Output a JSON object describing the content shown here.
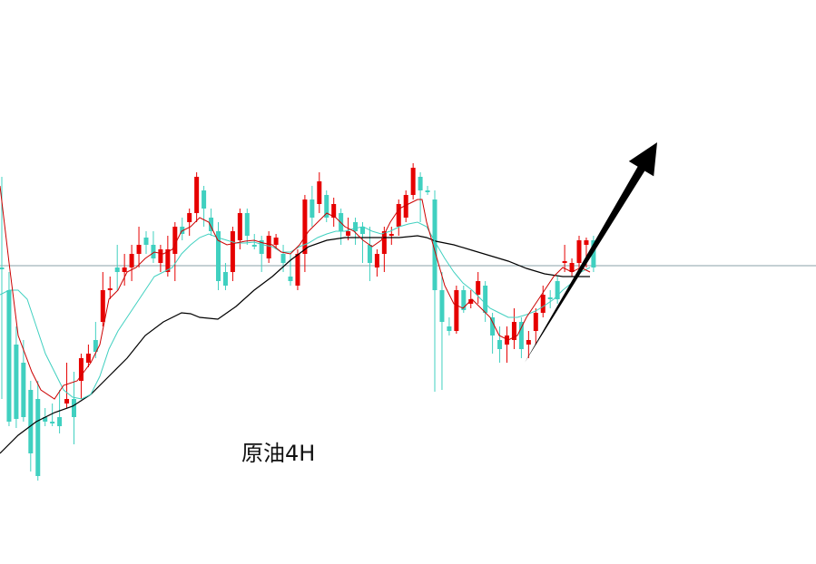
{
  "chart_data": {
    "type": "candlestick",
    "label": "原油4H",
    "ylim": [
      0,
      622
    ],
    "candles": [
      [
        295,
        295,
        195,
        440
      ],
      [
        320,
        465,
        300,
        470
      ],
      [
        380,
        462,
        360,
        472
      ],
      [
        400,
        460,
        375,
        465
      ],
      [
        430,
        500,
        420,
        520
      ],
      [
        440,
        525,
        420,
        530
      ],
      [
        460,
        465,
        450,
        470
      ],
      [
        465,
        465,
        445,
        470
      ],
      [
        460,
        470,
        430,
        478
      ],
      [
        445,
        440,
        400,
        450
      ],
      [
        440,
        460,
        410,
        490
      ],
      [
        420,
        395,
        390,
        440
      ],
      [
        400,
        390,
        380,
        405
      ],
      [
        375,
        388,
        355,
        395
      ],
      [
        355,
        320,
        300,
        360
      ],
      [
        320,
        318,
        305,
        330
      ],
      [
        295,
        300,
        270,
        320
      ],
      [
        300,
        295,
        280,
        315
      ],
      [
        295,
        280,
        270,
        310
      ],
      [
        280,
        270,
        250,
        295
      ],
      [
        262,
        270,
        255,
        280
      ],
      [
        270,
        285,
        255,
        290
      ],
      [
        290,
        275,
        270,
        300
      ],
      [
        300,
        275,
        260,
        305
      ],
      [
        280,
        250,
        245,
        310
      ],
      [
        250,
        258,
        240,
        265
      ],
      [
        245,
        235,
        230,
        260
      ],
      [
        235,
        195,
        190,
        245
      ],
      [
        210,
        230,
        205,
        250
      ],
      [
        240,
        255,
        230,
        260
      ],
      [
        255,
        310,
        245,
        320
      ],
      [
        300,
        315,
        290,
        320
      ],
      [
        300,
        255,
        250,
        310
      ],
      [
        265,
        235,
        230,
        275
      ],
      [
        235,
        260,
        230,
        270
      ],
      [
        270,
        270,
        258,
        275
      ],
      [
        265,
        280,
        260,
        300
      ],
      [
        285,
        260,
        255,
        290
      ],
      [
        270,
        262,
        258,
        275
      ],
      [
        280,
        290,
        270,
        300
      ],
      [
        305,
        310,
        280,
        315
      ],
      [
        315,
        280,
        275,
        320
      ],
      [
        280,
        220,
        215,
        300
      ],
      [
        220,
        240,
        205,
        250
      ],
      [
        225,
        200,
        190,
        235
      ],
      [
        215,
        240,
        210,
        245
      ],
      [
        240,
        225,
        218,
        250
      ],
      [
        235,
        255,
        230,
        270
      ],
      [
        260,
        255,
        240,
        265
      ],
      [
        245,
        255,
        240,
        270
      ],
      [
        250,
        258,
        245,
        290
      ],
      [
        270,
        290,
        250,
        310
      ],
      [
        295,
        280,
        275,
        305
      ],
      [
        280,
        255,
        250,
        300
      ],
      [
        260,
        258,
        250,
        270
      ],
      [
        250,
        225,
        220,
        260
      ],
      [
        240,
        215,
        210,
        245
      ],
      [
        215,
        185,
        180,
        220
      ],
      [
        195,
        210,
        190,
        245
      ],
      [
        210,
        210,
        205,
        215
      ],
      [
        220,
        320,
        210,
        432
      ],
      [
        320,
        355,
        300,
        430
      ],
      [
        360,
        365,
        350,
        370
      ],
      [
        365,
        320,
        315,
        368
      ],
      [
        320,
        342,
        315,
        345
      ],
      [
        335,
        330,
        320,
        340
      ],
      [
        325,
        310,
        300,
        335
      ],
      [
        315,
        345,
        310,
        355
      ],
      [
        350,
        370,
        345,
        390
      ],
      [
        375,
        385,
        360,
        400
      ],
      [
        380,
        370,
        360,
        400
      ],
      [
        375,
        355,
        340,
        385
      ],
      [
        355,
        385,
        350,
        395
      ],
      [
        380,
        375,
        365,
        395
      ],
      [
        365,
        345,
        340,
        380
      ],
      [
        345,
        325,
        315,
        350
      ],
      [
        328,
        330,
        320,
        340
      ],
      [
        310,
        330,
        305,
        335
      ],
      [
        290,
        288,
        270,
        300
      ],
      [
        300,
        290,
        285,
        305
      ],
      [
        290,
        265,
        260,
        300
      ],
      [
        270,
        265,
        262,
        295
      ],
      [
        265,
        295,
        260,
        300
      ]
    ],
    "ma_fast": [
      [
        0,
        205
      ],
      [
        10,
        290
      ],
      [
        20,
        370
      ],
      [
        35,
        410
      ],
      [
        45,
        430
      ],
      [
        60,
        440
      ],
      [
        70,
        425
      ],
      [
        85,
        420
      ],
      [
        100,
        400
      ],
      [
        110,
        380
      ],
      [
        120,
        330
      ],
      [
        130,
        320
      ],
      [
        140,
        300
      ],
      [
        150,
        295
      ],
      [
        160,
        285
      ],
      [
        170,
        278
      ],
      [
        180,
        280
      ],
      [
        190,
        275
      ],
      [
        200,
        255
      ],
      [
        210,
        250
      ],
      [
        220,
        240
      ],
      [
        230,
        245
      ],
      [
        240,
        265
      ],
      [
        250,
        270
      ],
      [
        260,
        268
      ],
      [
        270,
        266
      ],
      [
        280,
        265
      ],
      [
        290,
        268
      ],
      [
        300,
        270
      ],
      [
        310,
        278
      ],
      [
        320,
        280
      ],
      [
        330,
        270
      ],
      [
        340,
        255
      ],
      [
        350,
        245
      ],
      [
        360,
        235
      ],
      [
        370,
        240
      ],
      [
        380,
        250
      ],
      [
        390,
        255
      ],
      [
        400,
        265
      ],
      [
        410,
        272
      ],
      [
        420,
        265
      ],
      [
        430,
        245
      ],
      [
        440,
        230
      ],
      [
        450,
        225
      ],
      [
        460,
        220
      ],
      [
        465,
        220
      ],
      [
        470,
        245
      ],
      [
        480,
        280
      ],
      [
        490,
        315
      ],
      [
        500,
        335
      ],
      [
        510,
        340
      ],
      [
        520,
        330
      ],
      [
        530,
        340
      ],
      [
        540,
        350
      ],
      [
        550,
        370
      ],
      [
        560,
        375
      ],
      [
        570,
        370
      ],
      [
        580,
        350
      ],
      [
        590,
        335
      ],
      [
        600,
        320
      ],
      [
        610,
        305
      ],
      [
        620,
        295
      ],
      [
        630,
        300
      ],
      [
        640,
        295
      ],
      [
        650,
        300
      ]
    ],
    "ma_mid": [
      [
        0,
        325
      ],
      [
        10,
        320
      ],
      [
        20,
        320
      ],
      [
        30,
        330
      ],
      [
        40,
        360
      ],
      [
        50,
        390
      ],
      [
        60,
        410
      ],
      [
        70,
        430
      ],
      [
        80,
        438
      ],
      [
        90,
        440
      ],
      [
        100,
        435
      ],
      [
        110,
        415
      ],
      [
        120,
        385
      ],
      [
        130,
        365
      ],
      [
        140,
        350
      ],
      [
        150,
        335
      ],
      [
        160,
        320
      ],
      [
        170,
        305
      ],
      [
        180,
        300
      ],
      [
        190,
        295
      ],
      [
        200,
        280
      ],
      [
        210,
        270
      ],
      [
        220,
        262
      ],
      [
        230,
        258
      ],
      [
        240,
        262
      ],
      [
        250,
        265
      ],
      [
        260,
        268
      ],
      [
        270,
        268
      ],
      [
        280,
        267
      ],
      [
        290,
        270
      ],
      [
        300,
        272
      ],
      [
        310,
        278
      ],
      [
        320,
        278
      ],
      [
        330,
        272
      ],
      [
        340,
        268
      ],
      [
        350,
        262
      ],
      [
        360,
        258
      ],
      [
        370,
        255
      ],
      [
        380,
        255
      ],
      [
        390,
        252
      ],
      [
        400,
        250
      ],
      [
        410,
        255
      ],
      [
        420,
        258
      ],
      [
        430,
        255
      ],
      [
        440,
        250
      ],
      [
        450,
        247
      ],
      [
        460,
        245
      ],
      [
        470,
        250
      ],
      [
        480,
        268
      ],
      [
        490,
        285
      ],
      [
        500,
        300
      ],
      [
        510,
        312
      ],
      [
        520,
        320
      ],
      [
        530,
        330
      ],
      [
        540,
        340
      ],
      [
        550,
        345
      ],
      [
        560,
        350
      ],
      [
        570,
        350
      ],
      [
        580,
        347
      ],
      [
        590,
        343
      ],
      [
        600,
        337
      ],
      [
        610,
        330
      ],
      [
        620,
        320
      ],
      [
        630,
        312
      ],
      [
        640,
        300
      ],
      [
        650,
        295
      ]
    ],
    "ma_slow": [
      [
        0,
        500
      ],
      [
        20,
        480
      ],
      [
        40,
        465
      ],
      [
        60,
        455
      ],
      [
        80,
        448
      ],
      [
        100,
        435
      ],
      [
        120,
        415
      ],
      [
        140,
        395
      ],
      [
        160,
        370
      ],
      [
        180,
        355
      ],
      [
        200,
        345
      ],
      [
        210,
        346
      ],
      [
        220,
        350
      ],
      [
        240,
        352
      ],
      [
        260,
        338
      ],
      [
        280,
        320
      ],
      [
        300,
        305
      ],
      [
        320,
        287
      ],
      [
        340,
        272
      ],
      [
        360,
        265
      ],
      [
        380,
        262
      ],
      [
        400,
        262
      ],
      [
        420,
        262
      ],
      [
        440,
        262
      ],
      [
        460,
        260
      ],
      [
        470,
        262
      ],
      [
        480,
        266
      ],
      [
        500,
        270
      ],
      [
        520,
        276
      ],
      [
        540,
        282
      ],
      [
        560,
        288
      ],
      [
        580,
        296
      ],
      [
        600,
        302
      ],
      [
        620,
        305
      ],
      [
        640,
        305
      ],
      [
        650,
        305
      ]
    ],
    "hline": 293,
    "arrow": {
      "from": [
        578,
        400
      ],
      "to": [
        724,
        157
      ]
    },
    "colors": {
      "up": "#e60000",
      "down": "#40d0c0",
      "ma_fast": "#cc0000",
      "ma_mid": "#40d0c0",
      "ma_slow": "#000000",
      "hline": "#8aa0a8",
      "arrow": "#000000"
    }
  }
}
